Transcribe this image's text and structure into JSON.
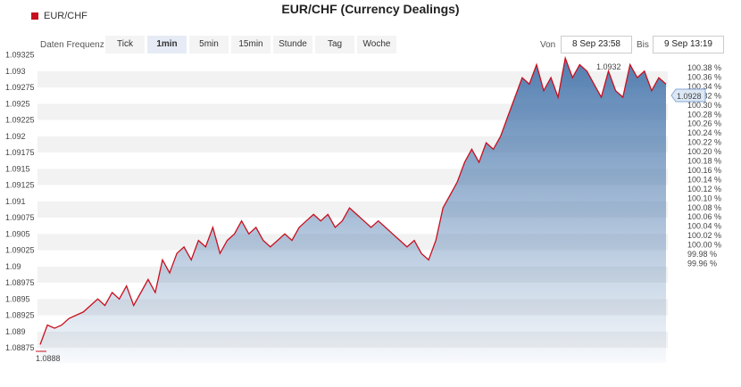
{
  "title": "EUR/CHF (Currency Dealings)",
  "legend": {
    "label": "EUR/CHF",
    "color": "#c80f1e"
  },
  "frequency": {
    "label": "Daten Frequenz",
    "options": [
      "Tick",
      "1min",
      "5min",
      "15min",
      "Stunde",
      "Tag",
      "Woche"
    ],
    "selected": "1min"
  },
  "range": {
    "from_label": "Von",
    "from_value": "8 Sep 23:58",
    "to_label": "Bis",
    "to_value": "9 Sep 13:19"
  },
  "chart_data": {
    "type": "area",
    "series": [
      {
        "name": "EUR/CHF",
        "color": "#c80f1e",
        "values": [
          1.0888,
          1.0891,
          1.08905,
          1.0891,
          1.0892,
          1.08925,
          1.0893,
          1.0894,
          1.0895,
          1.0894,
          1.0896,
          1.0895,
          1.0897,
          1.0894,
          1.0896,
          1.0898,
          1.0896,
          1.0901,
          1.0899,
          1.0902,
          1.0903,
          1.0901,
          1.0904,
          1.0903,
          1.0906,
          1.0902,
          1.0904,
          1.0905,
          1.0907,
          1.0905,
          1.0906,
          1.0904,
          1.0903,
          1.0904,
          1.0905,
          1.0904,
          1.0906,
          1.0907,
          1.0908,
          1.0907,
          1.0908,
          1.0906,
          1.0907,
          1.0909,
          1.0908,
          1.0907,
          1.0906,
          1.0907,
          1.0906,
          1.0905,
          1.0904,
          1.0903,
          1.0904,
          1.0902,
          1.0901,
          1.0904,
          1.0909,
          1.0911,
          1.0913,
          1.0916,
          1.0918,
          1.0916,
          1.0919,
          1.0918,
          1.092,
          1.0923,
          1.0926,
          1.0929,
          1.0928,
          1.0931,
          1.0927,
          1.0929,
          1.0926,
          1.0932,
          1.0929,
          1.0931,
          1.093,
          1.0928,
          1.0926,
          1.093,
          1.0927,
          1.0926,
          1.0931,
          1.0929,
          1.093,
          1.0927,
          1.0929,
          1.0928
        ]
      }
    ],
    "y_ticks": [
      "1.09325",
      "1.093",
      "1.09275",
      "1.0925",
      "1.09225",
      "1.092",
      "1.09175",
      "1.0915",
      "1.09125",
      "1.091",
      "1.09075",
      "1.0905",
      "1.09025",
      "1.09",
      "1.08975",
      "1.0895",
      "1.08925",
      "1.089",
      "1.08875"
    ],
    "y_right_ticks": [
      "100.38 %",
      "100.36 %",
      "100.34 %",
      "100.32 %",
      "100.30 %",
      "100.28 %",
      "100.26 %",
      "100.24 %",
      "100.22 %",
      "100.20 %",
      "100.18 %",
      "100.16 %",
      "100.14 %",
      "100.12 %",
      "100.10 %",
      "100.08 %",
      "100.06 %",
      "100.04 %",
      "100.02 %",
      "100.00 %",
      "99.98 %",
      "99.96 %"
    ],
    "ylim": [
      1.08875,
      1.0935
    ],
    "high_label": "1.0932",
    "low_label": "1.0888",
    "last_label": "1.0928",
    "fill_color": "#4a78ad",
    "grid": true
  }
}
